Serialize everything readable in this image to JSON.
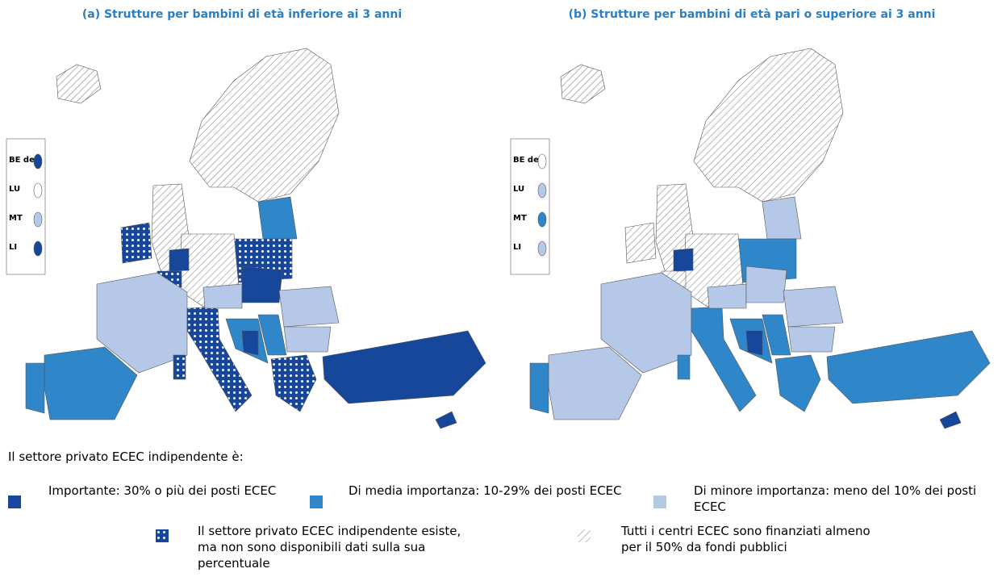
{
  "maps": [
    {
      "title": "(a) Strutture per bambini di età inferiore ai 3 anni",
      "insets": [
        "BE de",
        "LU",
        "MT",
        "LI"
      ]
    },
    {
      "title": "(b) Strutture per bambini di età pari o superiore ai 3 anni",
      "insets": [
        "BE de",
        "LU",
        "MT",
        "LI"
      ]
    }
  ],
  "legend": {
    "heading": "Il settore privato ECEC indipendente è:",
    "items": [
      "Importante: 30% o più dei posti ECEC",
      "Di media importanza: 10-29% dei posti ECEC",
      "Di minore importanza: meno del 10% dei posti ECEC",
      "Il settore privato ECEC indipendente esiste, ma non sono disponibili dati sulla sua percentuale",
      "Tutti i centri ECEC sono finanziati almeno per il 50% da fondi pubblici"
    ]
  }
}
